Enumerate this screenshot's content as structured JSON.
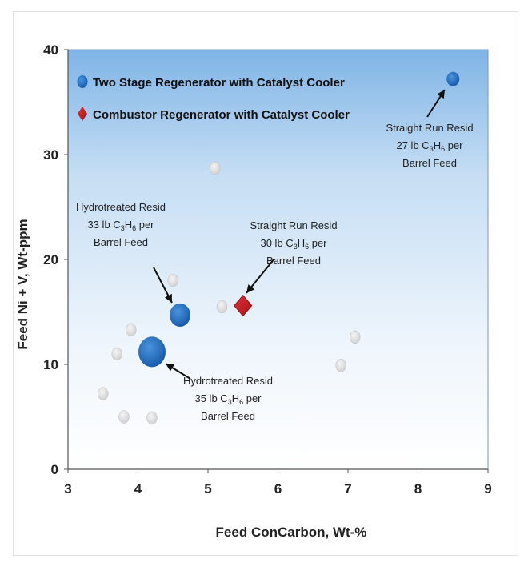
{
  "chart_data": {
    "type": "scatter",
    "title": "",
    "xlabel": "Feed ConCarbon, Wt-%",
    "ylabel": "Feed Ni + V, Wt-ppm",
    "xlim": [
      3,
      9
    ],
    "ylim": [
      0,
      40
    ],
    "x_ticks": [
      "3",
      "4",
      "5",
      "6",
      "7",
      "8",
      "9"
    ],
    "y_ticks": [
      "0",
      "10",
      "20",
      "30",
      "40"
    ],
    "grid": false,
    "legend_position": "top-left",
    "legend": [
      {
        "label": "Two Stage Regenerator with Catalyst Cooler",
        "marker": "circle",
        "color": "#1f6fbf"
      },
      {
        "label": "Combustor Regenerator with Catalyst Cooler",
        "marker": "diamond",
        "color": "#c8161d"
      }
    ],
    "series": [
      {
        "name": "Two Stage Regenerator with Catalyst Cooler",
        "marker": "circle",
        "color": "#1f6fbf",
        "points": [
          {
            "x": 4.2,
            "y": 11.2,
            "size": "large"
          },
          {
            "x": 4.6,
            "y": 14.7,
            "size": "medium"
          },
          {
            "x": 8.5,
            "y": 37.2,
            "size": "small"
          }
        ]
      },
      {
        "name": "Combustor Regenerator with Catalyst Cooler",
        "marker": "diamond",
        "color": "#c8161d",
        "points": [
          {
            "x": 5.5,
            "y": 15.6
          }
        ]
      },
      {
        "marker": "circle",
        "color": "#d9d9d9",
        "points": [
          {
            "x": 3.5,
            "y": 7.2
          },
          {
            "x": 3.7,
            "y": 11.0
          },
          {
            "x": 3.8,
            "y": 5.0
          },
          {
            "x": 3.9,
            "y": 13.3
          },
          {
            "x": 4.2,
            "y": 4.9
          },
          {
            "x": 4.5,
            "y": 18.0
          },
          {
            "x": 5.1,
            "y": 28.7
          },
          {
            "x": 5.2,
            "y": 15.5
          },
          {
            "x": 6.9,
            "y": 9.9
          },
          {
            "x": 7.1,
            "y": 12.6
          }
        ]
      }
    ],
    "annotations": [
      {
        "lines": [
          "Straight Run Resid",
          "27 lb C3H6 per",
          "Barrel Feed"
        ]
      },
      {
        "lines": [
          "Straight Run Resid",
          "30 lb C3H6 per",
          "Barrel Feed"
        ]
      },
      {
        "lines": [
          "Hydrotreated Resid",
          "33 lb C3H6 per",
          "Barrel Feed"
        ]
      },
      {
        "lines": [
          "Hydrotreated Resid",
          "35 lb C3H6 per",
          "Barrel Feed"
        ]
      }
    ]
  }
}
